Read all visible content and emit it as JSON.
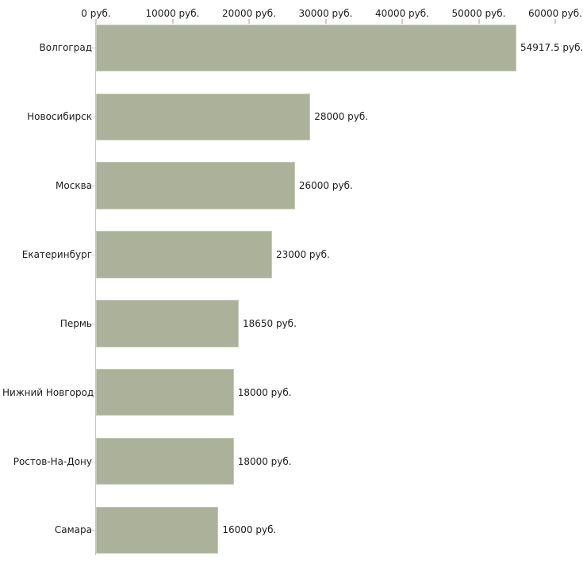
{
  "chart_data": {
    "type": "bar",
    "orientation": "horizontal",
    "title": "",
    "xlabel": "",
    "ylabel": "",
    "xlim": [
      0,
      60000
    ],
    "grid": false,
    "legend": "none",
    "x_ticks": [
      {
        "value": 0,
        "label": "0 руб."
      },
      {
        "value": 10000,
        "label": "10000 руб."
      },
      {
        "value": 20000,
        "label": "20000 руб."
      },
      {
        "value": 30000,
        "label": "30000 руб."
      },
      {
        "value": 40000,
        "label": "40000 руб."
      },
      {
        "value": 50000,
        "label": "50000 руб."
      },
      {
        "value": 60000,
        "label": "60000 руб."
      }
    ],
    "categories": [
      "Волгоград",
      "Новосибирск",
      "Москва",
      "Екатеринбург",
      "Пермь",
      "Нижний Новгород",
      "Ростов-На-Дону",
      "Самара"
    ],
    "values": [
      54917.5,
      28000,
      26000,
      23000,
      18650,
      18000,
      18000,
      16000
    ],
    "value_labels": [
      "54917.5 руб.",
      "28000 руб.",
      "26000 руб.",
      "23000 руб.",
      "18650 руб.",
      "18000 руб.",
      "18000 руб.",
      "16000 руб."
    ],
    "colors": {
      "bar_fill": "#acb299",
      "bar_border": "#c6cab8",
      "axis_line": "#c4c4c4",
      "tick_mark": "#cfcfc2",
      "text": "#1c1c1c",
      "background": "#ffffff"
    }
  }
}
